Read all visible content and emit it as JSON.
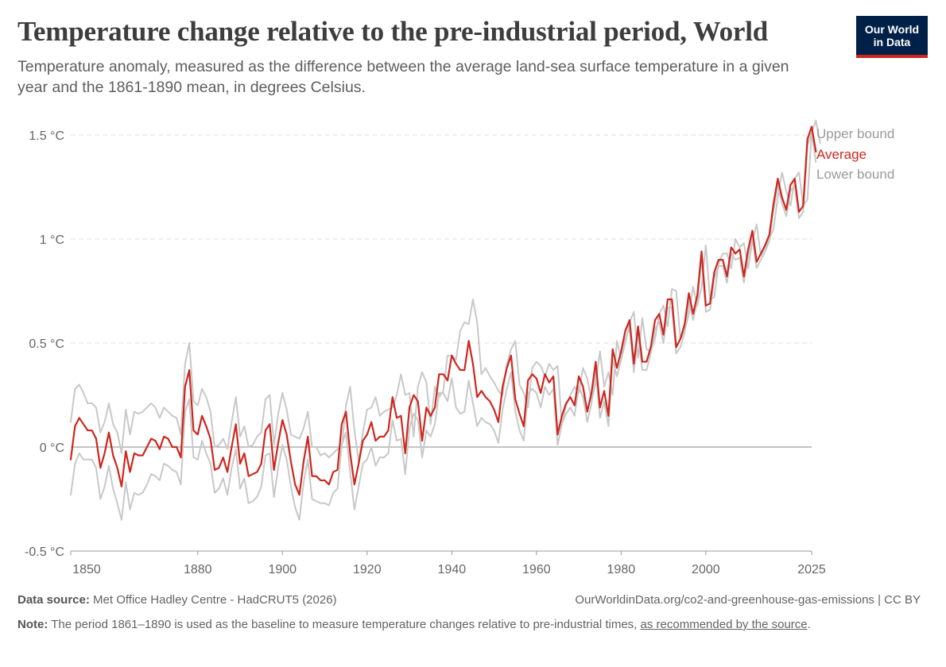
{
  "header": {
    "title": "Temperature change relative to the pre-industrial period, World",
    "subtitle": "Temperature anomaly, measured as the difference between the average land-sea surface temperature in a given year and the 1861-1890 mean, in degrees Celsius.",
    "logo_line1": "Our World",
    "logo_line2": "in Data"
  },
  "footer": {
    "source_label": "Data source:",
    "source_text": "Met Office Hadley Centre - HadCRUT5 (2026)",
    "url_text": "OurWorldinData.org/co2-and-greenhouse-gas-emissions | CC BY",
    "note_label": "Note:",
    "note_text": "The period 1861–1890 is used as the baseline to measure temperature changes relative to pre-industrial times,",
    "note_link": "as recommended by the source",
    "note_end": "."
  },
  "colors": {
    "average": "#ce261e",
    "bounds": "#c8c8c8",
    "grid": "#dddddd",
    "zero_line": "#8a8a8a",
    "axis_text": "#666666"
  },
  "chart_data": {
    "type": "line",
    "x_start": 1850,
    "x_end": 2025,
    "ylim": [
      -0.5,
      1.5
    ],
    "grid": "horizontal dashed",
    "legend_placement": "right, inline at line ends",
    "y_ticks": [
      {
        "value": -0.5,
        "label": "-0.5 °C"
      },
      {
        "value": 0,
        "label": "0 °C"
      },
      {
        "value": 0.5,
        "label": "0.5 °C"
      },
      {
        "value": 1,
        "label": "1 °C"
      },
      {
        "value": 1.5,
        "label": "1.5 °C"
      }
    ],
    "x_ticks": [
      {
        "value": 1850,
        "label": "1850"
      },
      {
        "value": 1880,
        "label": "1880"
      },
      {
        "value": 1900,
        "label": "1900"
      },
      {
        "value": 1920,
        "label": "1920"
      },
      {
        "value": 1940,
        "label": "1940"
      },
      {
        "value": 1960,
        "label": "1960"
      },
      {
        "value": 1980,
        "label": "1980"
      },
      {
        "value": 2000,
        "label": "2000"
      },
      {
        "value": 2025,
        "label": "2025"
      }
    ],
    "series": [
      {
        "name": "Upper bound",
        "values": [
          0.12,
          0.28,
          0.3,
          0.26,
          0.21,
          0.21,
          0.19,
          0.07,
          0.12,
          0.21,
          0.11,
          0.07,
          -0.03,
          0.18,
          0.06,
          0.17,
          0.16,
          0.17,
          0.19,
          0.21,
          0.19,
          0.14,
          0.19,
          0.17,
          0.15,
          0.14,
          0.06,
          0.4,
          0.5,
          0.22,
          0.2,
          0.28,
          0.24,
          0.17,
          0.0,
          0.01,
          0.04,
          -0.01,
          0.12,
          0.24,
          0.05,
          0.1,
          0.0,
          0.01,
          0.05,
          0.07,
          0.23,
          0.25,
          0.01,
          0.16,
          0.26,
          0.18,
          0.06,
          0.05,
          0.04,
          0.09,
          0.17,
          0.0,
          0.0,
          -0.04,
          -0.03,
          -0.05,
          -0.03,
          -0.01,
          0.0,
          0.2,
          0.29,
          0.08,
          -0.07,
          0.07,
          0.18,
          0.19,
          0.24,
          0.15,
          0.17,
          0.18,
          0.19,
          0.25,
          0.35,
          0.25,
          0.26,
          0.05,
          0.29,
          0.36,
          0.31,
          0.11,
          0.29,
          0.24,
          0.27,
          0.44,
          0.44,
          0.42,
          0.56,
          0.6,
          0.59,
          0.71,
          0.6,
          0.35,
          0.38,
          0.34,
          0.31,
          0.27,
          0.25,
          0.4,
          0.47,
          0.51,
          0.3,
          0.26,
          0.19,
          0.38,
          0.41,
          0.39,
          0.34,
          0.4,
          0.37,
          0.39,
          0.11,
          0.2,
          0.25,
          0.29,
          0.26,
          0.38,
          0.33,
          0.22,
          0.31,
          0.46,
          0.29,
          0.36,
          0.25,
          0.51,
          0.42,
          0.5,
          0.6,
          0.65,
          0.43,
          0.62,
          0.47,
          0.46,
          0.52,
          0.64,
          0.68,
          0.58,
          0.76,
          0.75,
          0.52,
          0.56,
          0.64,
          0.77,
          0.68,
          0.77,
          0.97,
          0.71,
          0.72,
          0.88,
          0.93,
          0.93,
          0.86,
          1.0,
          0.96,
          0.98,
          0.86,
          0.99,
          1.07,
          0.92,
          0.96,
          1.0,
          1.05,
          1.2,
          1.32,
          1.23,
          1.16,
          1.29,
          1.32,
          1.16,
          1.19,
          1.51,
          1.57,
          1.46
        ]
      },
      {
        "name": "Average",
        "values": [
          -0.06,
          0.1,
          0.14,
          0.11,
          0.08,
          0.08,
          0.04,
          -0.1,
          -0.03,
          0.07,
          -0.04,
          -0.1,
          -0.19,
          -0.02,
          -0.12,
          -0.03,
          -0.04,
          -0.04,
          0.0,
          0.04,
          0.03,
          -0.01,
          0.05,
          0.04,
          0.0,
          0.0,
          -0.05,
          0.29,
          0.37,
          0.08,
          0.06,
          0.15,
          0.1,
          0.04,
          -0.11,
          -0.1,
          -0.05,
          -0.12,
          0.0,
          0.11,
          -0.08,
          -0.03,
          -0.14,
          -0.13,
          -0.12,
          -0.08,
          0.08,
          0.11,
          -0.11,
          0.02,
          0.13,
          0.06,
          -0.07,
          -0.18,
          -0.23,
          -0.07,
          0.05,
          -0.14,
          -0.14,
          -0.16,
          -0.16,
          -0.18,
          -0.12,
          -0.11,
          0.11,
          0.17,
          -0.03,
          -0.18,
          -0.08,
          0.03,
          0.06,
          0.12,
          0.03,
          0.05,
          0.05,
          0.08,
          0.24,
          0.14,
          0.15,
          -0.03,
          0.19,
          0.25,
          0.22,
          0.03,
          0.19,
          0.15,
          0.19,
          0.35,
          0.35,
          0.32,
          0.44,
          0.4,
          0.37,
          0.37,
          0.51,
          0.4,
          0.24,
          0.27,
          0.24,
          0.22,
          0.18,
          0.12,
          0.29,
          0.38,
          0.44,
          0.23,
          0.16,
          0.1,
          0.32,
          0.35,
          0.33,
          0.26,
          0.35,
          0.31,
          0.34,
          0.06,
          0.15,
          0.21,
          0.24,
          0.2,
          0.34,
          0.29,
          0.17,
          0.26,
          0.41,
          0.19,
          0.27,
          0.15,
          0.47,
          0.38,
          0.46,
          0.56,
          0.61,
          0.4,
          0.58,
          0.41,
          0.41,
          0.48,
          0.61,
          0.64,
          0.54,
          0.71,
          0.71,
          0.48,
          0.52,
          0.59,
          0.74,
          0.64,
          0.73,
          0.94,
          0.68,
          0.69,
          0.84,
          0.9,
          0.9,
          0.82,
          0.96,
          0.93,
          0.95,
          0.82,
          0.95,
          1.04,
          0.89,
          0.93,
          0.97,
          1.02,
          1.17,
          1.29,
          1.2,
          1.14,
          1.26,
          1.29,
          1.13,
          1.16,
          1.48,
          1.54,
          1.42
        ]
      },
      {
        "name": "Lower bound",
        "values": [
          -0.23,
          -0.08,
          -0.03,
          -0.06,
          -0.06,
          -0.06,
          -0.1,
          -0.25,
          -0.19,
          -0.09,
          -0.2,
          -0.27,
          -0.35,
          -0.17,
          -0.3,
          -0.22,
          -0.23,
          -0.22,
          -0.18,
          -0.13,
          -0.14,
          -0.16,
          -0.08,
          -0.09,
          -0.11,
          -0.12,
          -0.18,
          0.17,
          0.23,
          -0.05,
          -0.06,
          0.03,
          -0.03,
          -0.08,
          -0.22,
          -0.2,
          -0.15,
          -0.23,
          -0.1,
          -0.01,
          -0.2,
          -0.15,
          -0.27,
          -0.26,
          -0.24,
          -0.19,
          -0.04,
          -0.03,
          -0.24,
          -0.1,
          0.01,
          -0.06,
          -0.19,
          -0.29,
          -0.35,
          -0.17,
          -0.06,
          -0.25,
          -0.26,
          -0.27,
          -0.27,
          -0.28,
          -0.22,
          -0.2,
          0.01,
          0.07,
          -0.12,
          -0.3,
          -0.19,
          -0.08,
          -0.06,
          0.0,
          -0.09,
          -0.05,
          -0.05,
          -0.03,
          0.13,
          0.03,
          0.04,
          -0.13,
          0.09,
          0.16,
          0.13,
          -0.05,
          0.08,
          0.05,
          0.11,
          0.26,
          0.26,
          0.22,
          0.33,
          0.19,
          0.16,
          0.17,
          0.32,
          0.21,
          0.1,
          0.14,
          0.12,
          0.11,
          0.08,
          0.02,
          0.18,
          0.28,
          0.36,
          0.17,
          0.08,
          0.03,
          0.26,
          0.28,
          0.26,
          0.19,
          0.29,
          0.25,
          0.28,
          0.01,
          0.11,
          0.16,
          0.19,
          0.15,
          0.29,
          0.24,
          0.12,
          0.21,
          0.36,
          0.14,
          0.22,
          0.1,
          0.42,
          0.34,
          0.42,
          0.52,
          0.57,
          0.36,
          0.54,
          0.37,
          0.37,
          0.45,
          0.57,
          0.6,
          0.5,
          0.67,
          0.67,
          0.45,
          0.48,
          0.55,
          0.7,
          0.61,
          0.7,
          0.91,
          0.65,
          0.66,
          0.81,
          0.87,
          0.87,
          0.79,
          0.93,
          0.9,
          0.91,
          0.79,
          0.92,
          1.01,
          0.86,
          0.9,
          0.94,
          0.99,
          1.14,
          1.26,
          1.17,
          1.11,
          1.23,
          1.26,
          1.1,
          1.13,
          1.45,
          1.51,
          1.37
        ]
      }
    ]
  }
}
